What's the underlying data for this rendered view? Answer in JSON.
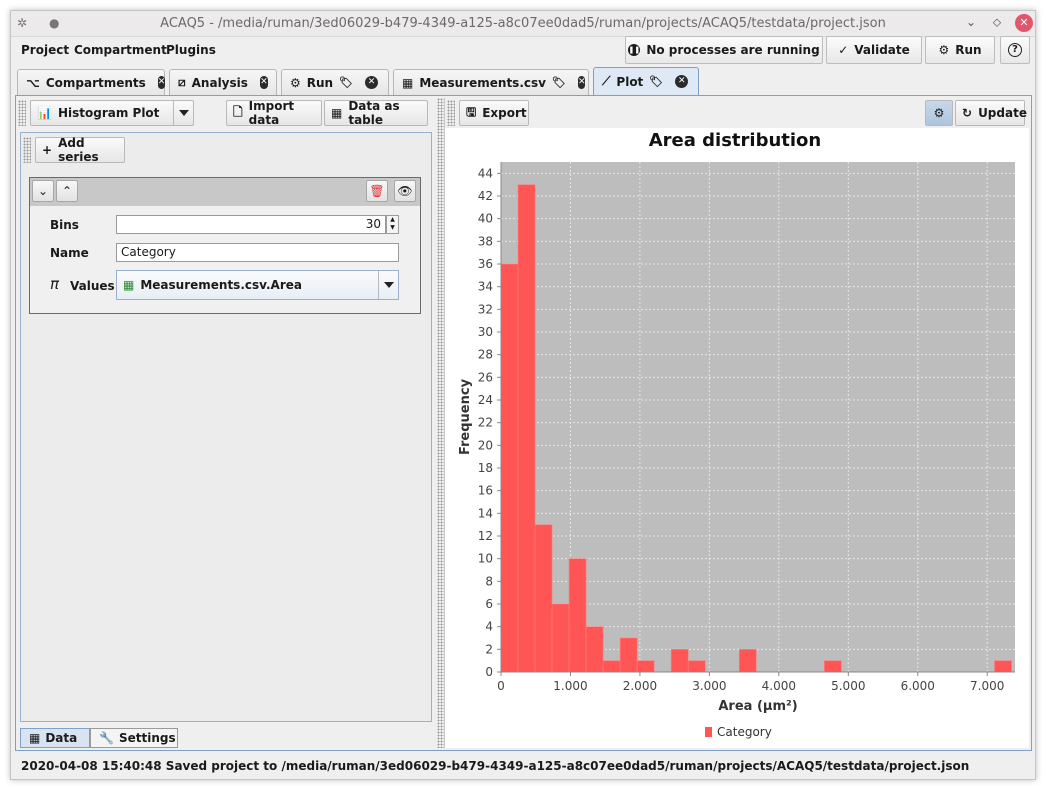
{
  "window": {
    "title": "ACAQ5 - /media/ruman/3ed06029-b479-4349-a125-a8c07ee0dad5/ruman/projects/ACAQ5/testdata/project.json"
  },
  "menu": [
    "Project",
    "Compartment",
    "Plugins"
  ],
  "toolbar": {
    "status_label": "No processes are running",
    "validate_label": "Validate",
    "run_label": "Run",
    "help_label": "?"
  },
  "tabs": [
    {
      "label": "Compartments",
      "icon": "compartments-icon"
    },
    {
      "label": "Analysis",
      "icon": "analysis-icon"
    },
    {
      "label": "Run",
      "icon": "gear-icon"
    },
    {
      "label": "Measurements.csv",
      "icon": "table-icon"
    },
    {
      "label": "Plot",
      "icon": "plot-icon",
      "active": true
    }
  ],
  "left": {
    "plot_type": "Histogram Plot",
    "import_label": "Import data",
    "table_label": "Data as table",
    "add_series_label": "Add series",
    "series": {
      "bins_label": "Bins",
      "bins_value": "30",
      "name_label": "Name",
      "name_value": "Category",
      "values_label": "Values",
      "values_value": "Measurements.csv.Area"
    },
    "bottom_tabs": [
      "Data",
      "Settings"
    ]
  },
  "right": {
    "export_label": "Export",
    "update_label": "Update"
  },
  "chart_data": {
    "type": "bar",
    "title": "Area distribution",
    "xlabel": "Area (µm²)",
    "ylabel": "Frequency",
    "xlim": [
      0,
      7400
    ],
    "ylim": [
      0,
      45
    ],
    "xticks": [
      "0",
      "1.000",
      "2.000",
      "3.000",
      "4.000",
      "5.000",
      "6.000",
      "7.000"
    ],
    "xtick_values": [
      0,
      1000,
      2000,
      3000,
      4000,
      5000,
      6000,
      7000
    ],
    "ytick_values": [
      0,
      2,
      4,
      6,
      8,
      10,
      12,
      14,
      16,
      18,
      20,
      22,
      24,
      26,
      28,
      30,
      32,
      34,
      36,
      38,
      40,
      42,
      44
    ],
    "grid": true,
    "legend_position": "bottom",
    "series": [
      {
        "name": "Category",
        "color": "#ff5555",
        "bin_start": 0,
        "bin_width": 245,
        "values": [
          36,
          43,
          13,
          6,
          10,
          4,
          1,
          3,
          1,
          0,
          2,
          1,
          0,
          0,
          2,
          0,
          0,
          0,
          0,
          1,
          0,
          0,
          0,
          0,
          0,
          0,
          0,
          0,
          0,
          1
        ]
      }
    ]
  },
  "statusbar": {
    "text": "2020-04-08 15:40:48 Saved project to /media/ruman/3ed06029-b479-4349-a125-a8c07ee0dad5/ruman/projects/ACAQ5/testdata/project.json"
  }
}
